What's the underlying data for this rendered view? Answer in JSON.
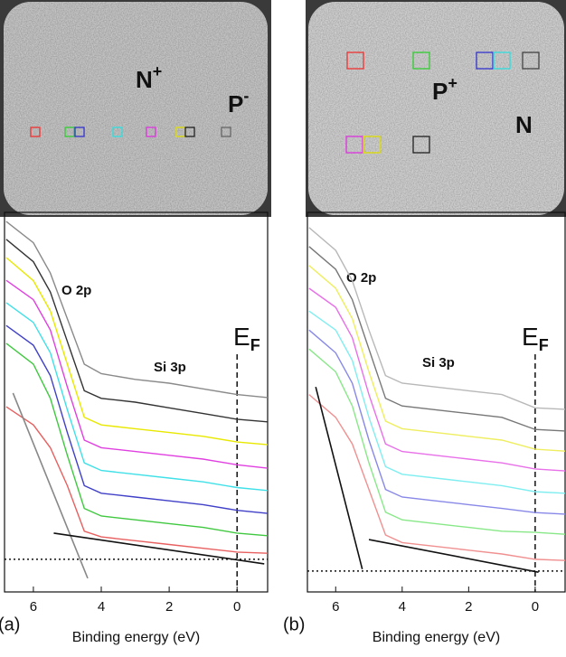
{
  "chart_data": [
    {
      "type": "line",
      "panel_label": "(a)",
      "x_label": "Binding energy (eV)",
      "image_labels": [
        {
          "base": "N",
          "sup": "+"
        },
        {
          "base": "P",
          "sup": "-"
        }
      ],
      "annotations": [
        "O 2p",
        "Si 3p"
      ],
      "fermi_label": {
        "base": "E",
        "sub": "F"
      },
      "xlim": [
        6.85,
        -0.9
      ],
      "xticks": [
        6,
        4,
        2,
        0
      ],
      "ylim": [
        0,
        100
      ],
      "fermi_level": 0,
      "baseline": 8.6,
      "x": [
        6.8,
        6,
        5.5,
        5,
        4.5,
        4,
        3,
        2,
        1,
        0,
        -0.9
      ],
      "series": [
        {
          "color": "#8a8a8a",
          "values": [
            97.6,
            92,
            84,
            72,
            60,
            57.5,
            56,
            55,
            53.5,
            52,
            51.2
          ]
        },
        {
          "color": "#333333",
          "values": [
            92.9,
            87,
            79,
            66,
            53,
            51,
            50,
            48.5,
            47,
            45.5,
            44.8
          ]
        },
        {
          "color": "#e8e800",
          "values": [
            88.1,
            82,
            74,
            60,
            46,
            44,
            43,
            42,
            41,
            39.5,
            38.8
          ]
        },
        {
          "color": "#e040e0",
          "values": [
            82.1,
            77,
            69,
            54,
            40,
            38,
            37,
            36,
            35,
            33.5,
            32.6
          ]
        },
        {
          "color": "#40e0e8",
          "values": [
            76.2,
            71,
            63,
            48,
            34,
            32,
            31,
            30,
            29,
            27.5,
            26.7
          ]
        },
        {
          "color": "#4040c8",
          "values": [
            70.2,
            65,
            57,
            42,
            28,
            26,
            25,
            24,
            23,
            21.5,
            20.7
          ]
        },
        {
          "color": "#40c840",
          "values": [
            65.5,
            60,
            51,
            36,
            22,
            20,
            19,
            18,
            17,
            15.5,
            14.8
          ]
        },
        {
          "color": "#e86060",
          "values": [
            48.8,
            44,
            38,
            28,
            16,
            14.5,
            13.5,
            12.5,
            11.5,
            10.5,
            10.2
          ]
        }
      ],
      "fits": [
        {
          "color": "#888888",
          "x": [
            6.6,
            4.4
          ],
          "values": [
            52.4,
            3.6
          ]
        },
        {
          "color": "#111111",
          "x": [
            5.4,
            -0.8
          ],
          "values": [
            15.5,
            7.4
          ]
        }
      ]
    },
    {
      "type": "line",
      "panel_label": "(b)",
      "x_label": "Binding energy (eV)",
      "image_labels": [
        {
          "base": "P",
          "sup": "+"
        },
        {
          "base": "N",
          "sup": ""
        }
      ],
      "annotations": [
        "O 2p",
        "Si 3p"
      ],
      "fermi_label": {
        "base": "E",
        "sub": "F"
      },
      "xlim": [
        6.85,
        -0.9
      ],
      "xticks": [
        6,
        4,
        2,
        0
      ],
      "ylim": [
        0,
        100
      ],
      "fermi_level": 0,
      "baseline": 5.5,
      "x": [
        6.8,
        6,
        5.5,
        5,
        4.5,
        4,
        3,
        2,
        1,
        0,
        -0.9
      ],
      "series": [
        {
          "color": "#b8b8b8",
          "values": [
            96,
            90,
            82,
            69,
            57,
            55,
            54,
            53,
            52,
            48.5,
            48.1
          ]
        },
        {
          "color": "#777777",
          "values": [
            91,
            85,
            77,
            64,
            51,
            49,
            48,
            47,
            46,
            42.8,
            42.4
          ]
        },
        {
          "color": "#eeee60",
          "values": [
            86,
            80,
            72,
            58,
            45,
            43,
            42,
            41,
            40,
            37.6,
            37.1
          ]
        },
        {
          "color": "#e870e8",
          "values": [
            80,
            75,
            67,
            52,
            39,
            37,
            36,
            35,
            34,
            32.4,
            31.9
          ]
        },
        {
          "color": "#80eef0",
          "values": [
            74,
            69,
            61,
            46,
            33,
            31,
            30,
            29,
            28,
            26.4,
            26.0
          ]
        },
        {
          "color": "#8888e8",
          "values": [
            69,
            63,
            55,
            40,
            27,
            25,
            24,
            23,
            22,
            20.9,
            20.5
          ]
        },
        {
          "color": "#88e888",
          "values": [
            64,
            58,
            49,
            34,
            21,
            19,
            18,
            17,
            16,
            15.7,
            15.2
          ]
        },
        {
          "color": "#f09090",
          "values": [
            52,
            46,
            39,
            27,
            15,
            13,
            12,
            11,
            10,
            8.6,
            8.3
          ]
        }
      ],
      "fits": [
        {
          "color": "#111111",
          "x": [
            6.6,
            5.2
          ],
          "values": [
            54,
            6
          ]
        },
        {
          "color": "#111111",
          "x": [
            5.0,
            -0.1
          ],
          "values": [
            13.8,
            5.2
          ]
        }
      ]
    }
  ]
}
